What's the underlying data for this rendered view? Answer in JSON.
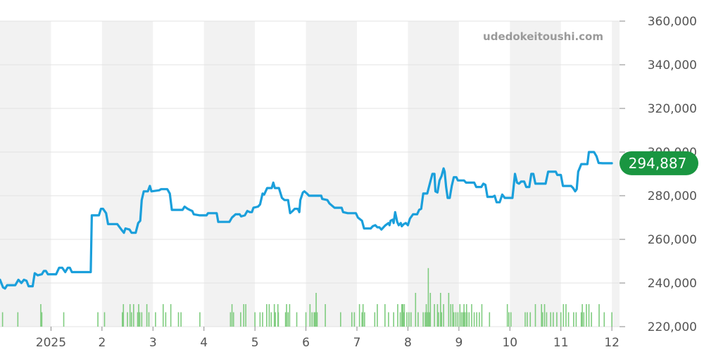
{
  "chart_data": {
    "type": "line",
    "watermark": "udedokeitoushi.com",
    "y_axis": {
      "min": 220000,
      "max": 360000,
      "ticks": [
        220000,
        240000,
        260000,
        280000,
        300000,
        320000,
        340000,
        360000
      ],
      "tick_labels": [
        "220,000",
        "240,000",
        "260,000",
        "280,000",
        "300,000",
        "320,000",
        "340,000",
        "360,000"
      ],
      "position": "right"
    },
    "x_axis": {
      "ticks": [
        {
          "label": "2025",
          "x": 1.0
        },
        {
          "label": "2",
          "x": 2.0
        },
        {
          "label": "3",
          "x": 3.0
        },
        {
          "label": "4",
          "x": 4.0
        },
        {
          "label": "5",
          "x": 5.0
        },
        {
          "label": "6",
          "x": 6.0
        },
        {
          "label": "7",
          "x": 7.0
        },
        {
          "label": "8",
          "x": 8.0
        },
        {
          "label": "9",
          "x": 9.0
        },
        {
          "label": "10",
          "x": 10.0
        },
        {
          "label": "11",
          "x": 11.0
        },
        {
          "label": "12",
          "x": 12.0
        }
      ],
      "range": [
        0.0,
        12.15
      ]
    },
    "grid": true,
    "alternating_bands": true,
    "current_value": {
      "label": "294,887",
      "value": 294887,
      "color": "#1a9641"
    },
    "colors": {
      "line": "#1a9fdb",
      "volume": "#7fcc7f",
      "band": "#f2f2f2",
      "grid": "#e3e3e3"
    },
    "series": [
      {
        "values": [
          [
            0.0,
            241500
          ],
          [
            0.06,
            238000
          ],
          [
            0.1,
            237500
          ],
          [
            0.14,
            239000
          ],
          [
            0.3,
            239000
          ],
          [
            0.36,
            241500
          ],
          [
            0.42,
            240000
          ],
          [
            0.47,
            241500
          ],
          [
            0.52,
            241000
          ],
          [
            0.56,
            238500
          ],
          [
            0.64,
            238500
          ],
          [
            0.68,
            244500
          ],
          [
            0.74,
            243500
          ],
          [
            0.82,
            244000
          ],
          [
            0.86,
            245500
          ],
          [
            0.9,
            245500
          ],
          [
            0.94,
            244000
          ],
          [
            1.1,
            244000
          ],
          [
            1.16,
            247000
          ],
          [
            1.22,
            247000
          ],
          [
            1.28,
            245000
          ],
          [
            1.33,
            247000
          ],
          [
            1.37,
            247000
          ],
          [
            1.41,
            245000
          ],
          [
            1.78,
            245000
          ],
          [
            1.8,
            271000
          ],
          [
            1.88,
            271000
          ],
          [
            1.94,
            271000
          ],
          [
            1.98,
            274000
          ],
          [
            2.02,
            274000
          ],
          [
            2.08,
            272000
          ],
          [
            2.12,
            267000
          ],
          [
            2.3,
            267000
          ],
          [
            2.38,
            264500
          ],
          [
            2.43,
            263000
          ],
          [
            2.46,
            265000
          ],
          [
            2.54,
            264500
          ],
          [
            2.58,
            263000
          ],
          [
            2.66,
            263000
          ],
          [
            2.71,
            267500
          ],
          [
            2.75,
            268500
          ],
          [
            2.78,
            278000
          ],
          [
            2.82,
            282000
          ],
          [
            2.9,
            282000
          ],
          [
            2.94,
            284500
          ],
          [
            2.97,
            282000
          ],
          [
            3.12,
            282500
          ],
          [
            3.16,
            283000
          ],
          [
            3.28,
            283000
          ],
          [
            3.33,
            281000
          ],
          [
            3.37,
            273500
          ],
          [
            3.58,
            273500
          ],
          [
            3.62,
            275000
          ],
          [
            3.68,
            274000
          ],
          [
            3.72,
            273500
          ],
          [
            3.77,
            273000
          ],
          [
            3.8,
            271500
          ],
          [
            3.92,
            271000
          ],
          [
            4.05,
            271000
          ],
          [
            4.08,
            272000
          ],
          [
            4.25,
            272000
          ],
          [
            4.28,
            268000
          ],
          [
            4.5,
            268000
          ],
          [
            4.55,
            270000
          ],
          [
            4.62,
            271500
          ],
          [
            4.7,
            271500
          ],
          [
            4.73,
            270500
          ],
          [
            4.8,
            271000
          ],
          [
            4.85,
            273000
          ],
          [
            4.9,
            272500
          ],
          [
            4.94,
            272500
          ],
          [
            4.97,
            274500
          ],
          [
            5.06,
            275000
          ],
          [
            5.1,
            276000
          ],
          [
            5.15,
            281000
          ],
          [
            5.18,
            280500
          ],
          [
            5.24,
            283500
          ],
          [
            5.33,
            283500
          ],
          [
            5.36,
            286000
          ],
          [
            5.39,
            283500
          ],
          [
            5.47,
            283500
          ],
          [
            5.53,
            279000
          ],
          [
            5.58,
            278000
          ],
          [
            5.65,
            278000
          ],
          [
            5.69,
            272000
          ],
          [
            5.74,
            273000
          ],
          [
            5.78,
            274000
          ],
          [
            5.84,
            274000
          ],
          [
            5.87,
            272500
          ],
          [
            5.89,
            278000
          ],
          [
            5.94,
            281500
          ],
          [
            5.97,
            282000
          ],
          [
            6.02,
            281000
          ],
          [
            6.06,
            280000
          ],
          [
            6.3,
            280000
          ],
          [
            6.32,
            278500
          ],
          [
            6.42,
            278000
          ],
          [
            6.46,
            276500
          ],
          [
            6.56,
            274500
          ],
          [
            6.7,
            274500
          ],
          [
            6.73,
            272500
          ],
          [
            6.82,
            272000
          ],
          [
            6.98,
            272000
          ],
          [
            7.02,
            270000
          ],
          [
            7.1,
            268500
          ],
          [
            7.14,
            265000
          ],
          [
            7.27,
            265000
          ],
          [
            7.31,
            266000
          ],
          [
            7.36,
            266500
          ],
          [
            7.4,
            265500
          ],
          [
            7.44,
            265500
          ],
          [
            7.48,
            264500
          ],
          [
            7.52,
            265500
          ],
          [
            7.56,
            266500
          ],
          [
            7.62,
            267500
          ],
          [
            7.64,
            266500
          ],
          [
            7.66,
            268500
          ],
          [
            7.7,
            269000
          ],
          [
            7.72,
            267500
          ],
          [
            7.75,
            272500
          ],
          [
            7.79,
            268000
          ],
          [
            7.82,
            266500
          ],
          [
            7.86,
            267500
          ],
          [
            7.88,
            266000
          ],
          [
            7.92,
            267000
          ],
          [
            7.96,
            267500
          ],
          [
            8.0,
            266500
          ],
          [
            8.04,
            269500
          ],
          [
            8.1,
            271500
          ],
          [
            8.18,
            271500
          ],
          [
            8.22,
            273500
          ],
          [
            8.26,
            274000
          ],
          [
            8.3,
            281000
          ],
          [
            8.38,
            281000
          ],
          [
            8.44,
            286500
          ],
          [
            8.48,
            290000
          ],
          [
            8.52,
            290000
          ],
          [
            8.54,
            282000
          ],
          [
            8.58,
            281500
          ],
          [
            8.62,
            287000
          ],
          [
            8.66,
            289000
          ],
          [
            8.7,
            292500
          ],
          [
            8.72,
            291000
          ],
          [
            8.75,
            284000
          ],
          [
            8.78,
            279000
          ],
          [
            8.82,
            279000
          ],
          [
            8.86,
            284500
          ],
          [
            8.9,
            288500
          ],
          [
            8.95,
            288500
          ],
          [
            8.98,
            287000
          ],
          [
            9.1,
            287000
          ],
          [
            9.14,
            286000
          ],
          [
            9.3,
            286000
          ],
          [
            9.34,
            284000
          ],
          [
            9.44,
            284000
          ],
          [
            9.48,
            285500
          ],
          [
            9.52,
            285000
          ],
          [
            9.56,
            279500
          ],
          [
            9.66,
            279500
          ],
          [
            9.7,
            280000
          ],
          [
            9.74,
            277000
          ],
          [
            9.8,
            277000
          ],
          [
            9.85,
            280500
          ],
          [
            9.9,
            279000
          ],
          [
            10.05,
            279000
          ],
          [
            10.1,
            290000
          ],
          [
            10.14,
            286000
          ],
          [
            10.18,
            285500
          ],
          [
            10.22,
            286500
          ],
          [
            10.28,
            286500
          ],
          [
            10.32,
            284000
          ],
          [
            10.38,
            284000
          ],
          [
            10.42,
            290000
          ],
          [
            10.46,
            290000
          ],
          [
            10.5,
            285500
          ],
          [
            10.58,
            285500
          ],
          [
            10.7,
            285500
          ],
          [
            10.75,
            291000
          ],
          [
            10.9,
            291000
          ],
          [
            10.93,
            289500
          ],
          [
            11.0,
            289500
          ],
          [
            11.04,
            284500
          ],
          [
            11.2,
            284500
          ],
          [
            11.24,
            283500
          ],
          [
            11.28,
            282000
          ],
          [
            11.31,
            283000
          ],
          [
            11.34,
            291000
          ],
          [
            11.4,
            294500
          ],
          [
            11.52,
            294500
          ],
          [
            11.55,
            300000
          ],
          [
            11.65,
            300000
          ],
          [
            11.7,
            298000
          ],
          [
            11.74,
            295000
          ],
          [
            11.82,
            294887
          ],
          [
            12.0,
            294887
          ]
        ]
      }
    ],
    "volume": [
      [
        0.05,
        0.32
      ],
      [
        0.35,
        0.32
      ],
      [
        0.82,
        0.32
      ],
      [
        1.25,
        0.32
      ],
      [
        1.92,
        0.32
      ],
      [
        2.05,
        0.32
      ],
      [
        2.4,
        0.32
      ],
      [
        2.5,
        0.32
      ],
      [
        2.58,
        0.32
      ],
      [
        2.7,
        0.32
      ],
      [
        2.74,
        0.32
      ],
      [
        2.78,
        0.32
      ],
      [
        2.92,
        0.32
      ],
      [
        3.05,
        0.32
      ],
      [
        3.25,
        0.32
      ],
      [
        3.5,
        0.32
      ],
      [
        3.55,
        0.32
      ],
      [
        3.92,
        0.32
      ],
      [
        4.52,
        0.32
      ],
      [
        4.58,
        0.32
      ],
      [
        4.72,
        0.32
      ],
      [
        5.0,
        0.32
      ],
      [
        5.1,
        0.32
      ],
      [
        5.15,
        0.32
      ],
      [
        5.32,
        0.32
      ],
      [
        5.4,
        0.32
      ],
      [
        5.46,
        0.32
      ],
      [
        5.6,
        0.32
      ],
      [
        5.65,
        0.32
      ],
      [
        5.82,
        0.32
      ],
      [
        6.0,
        0.32
      ],
      [
        6.12,
        0.32
      ],
      [
        6.16,
        0.32
      ],
      [
        6.18,
        0.32
      ],
      [
        6.22,
        0.32
      ],
      [
        6.68,
        0.32
      ],
      [
        6.9,
        0.32
      ],
      [
        6.95,
        0.32
      ],
      [
        7.1,
        0.32
      ],
      [
        7.15,
        0.32
      ],
      [
        7.35,
        0.32
      ],
      [
        7.62,
        0.32
      ],
      [
        7.72,
        0.32
      ],
      [
        7.85,
        0.32
      ],
      [
        7.92,
        0.32
      ],
      [
        7.98,
        0.32
      ],
      [
        8.02,
        0.32
      ],
      [
        8.06,
        0.32
      ],
      [
        8.2,
        0.32
      ],
      [
        8.3,
        0.32
      ],
      [
        8.34,
        0.32
      ],
      [
        8.38,
        0.32
      ],
      [
        8.42,
        0.32
      ],
      [
        8.6,
        0.32
      ],
      [
        8.66,
        0.32
      ],
      [
        8.9,
        0.32
      ],
      [
        8.94,
        0.32
      ],
      [
        8.98,
        0.32
      ],
      [
        9.05,
        0.32
      ],
      [
        9.08,
        0.32
      ],
      [
        9.12,
        0.32
      ],
      [
        9.16,
        0.32
      ],
      [
        9.2,
        0.32
      ],
      [
        9.3,
        0.32
      ],
      [
        9.35,
        0.32
      ],
      [
        9.4,
        0.32
      ],
      [
        9.6,
        0.32
      ],
      [
        9.98,
        0.32
      ],
      [
        10.02,
        0.32
      ],
      [
        10.3,
        0.32
      ],
      [
        10.34,
        0.32
      ],
      [
        10.4,
        0.32
      ],
      [
        10.64,
        0.32
      ],
      [
        10.72,
        0.32
      ],
      [
        10.8,
        0.32
      ],
      [
        10.85,
        0.32
      ],
      [
        10.92,
        0.32
      ],
      [
        11.0,
        0.32
      ],
      [
        11.15,
        0.32
      ],
      [
        11.25,
        0.32
      ],
      [
        11.3,
        0.32
      ],
      [
        11.4,
        0.32
      ],
      [
        11.45,
        0.32
      ],
      [
        11.6,
        0.32
      ],
      [
        11.85,
        0.32
      ],
      [
        12.0,
        0.32
      ]
    ],
    "volume_tall": [
      [
        0.8,
        0.5
      ],
      [
        2.42,
        0.5
      ],
      [
        2.55,
        0.5
      ],
      [
        2.62,
        0.5
      ],
      [
        2.72,
        0.5
      ],
      [
        2.88,
        0.5
      ],
      [
        3.2,
        0.5
      ],
      [
        3.35,
        0.5
      ],
      [
        4.55,
        0.5
      ],
      [
        4.78,
        0.5
      ],
      [
        4.82,
        0.5
      ],
      [
        5.23,
        0.5
      ],
      [
        5.28,
        0.5
      ],
      [
        5.38,
        0.5
      ],
      [
        5.45,
        0.5
      ],
      [
        5.62,
        0.5
      ],
      [
        5.68,
        0.5
      ],
      [
        6.08,
        0.5
      ],
      [
        6.38,
        0.5
      ],
      [
        7.05,
        0.5
      ],
      [
        7.12,
        0.5
      ],
      [
        7.4,
        0.5
      ],
      [
        7.55,
        0.5
      ],
      [
        7.8,
        0.5
      ],
      [
        7.88,
        0.5
      ],
      [
        7.9,
        0.5
      ],
      [
        7.93,
        0.5
      ],
      [
        8.36,
        0.5
      ],
      [
        8.52,
        0.5
      ],
      [
        8.58,
        0.5
      ],
      [
        8.7,
        0.5
      ],
      [
        8.84,
        0.5
      ],
      [
        8.88,
        0.5
      ],
      [
        9.02,
        0.5
      ],
      [
        9.1,
        0.5
      ],
      [
        9.15,
        0.5
      ],
      [
        9.25,
        0.5
      ],
      [
        9.45,
        0.5
      ],
      [
        9.95,
        0.5
      ],
      [
        10.5,
        0.5
      ],
      [
        10.62,
        0.5
      ],
      [
        10.68,
        0.5
      ],
      [
        11.05,
        0.5
      ],
      [
        11.1,
        0.5
      ],
      [
        11.42,
        0.5
      ],
      [
        11.5,
        0.5
      ],
      [
        11.55,
        0.5
      ],
      [
        11.75,
        0.5
      ]
    ],
    "volume_peak": [
      [
        6.2,
        0.75
      ],
      [
        8.15,
        0.75
      ],
      [
        8.4,
        1.3
      ],
      [
        8.44,
        0.75
      ],
      [
        8.64,
        0.75
      ],
      [
        8.8,
        0.75
      ]
    ]
  }
}
